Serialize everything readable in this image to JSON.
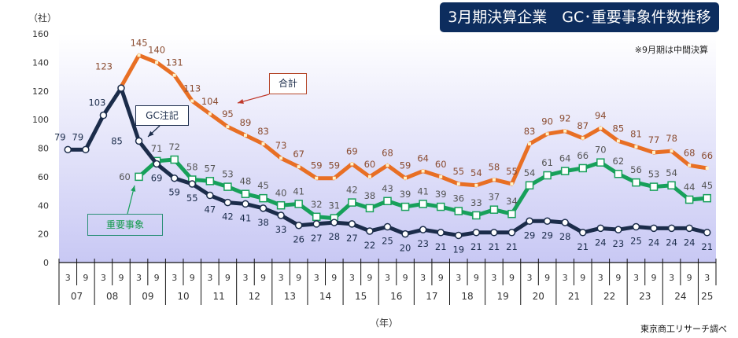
{
  "title": "3月期決算企業　GC･重要事象件数推移",
  "note": "※9月期は中間決算",
  "source": "東京商工リサーチ調べ",
  "colors": {
    "title_bg": "#0d2d5e",
    "gc": "#1b2c4a",
    "important": "#17a05a",
    "total": "#e86f24",
    "total_label": "#8a4b2f",
    "plot_bg_top": "#ffffff",
    "plot_bg_bottom": "#c8c8f4"
  },
  "callouts": {
    "gc": "GC注記",
    "total": "合計",
    "important": "重要事象"
  },
  "chart_data": {
    "type": "line",
    "title": "3月期決算企業　GC･重要事象件数推移",
    "ylabel": "（社）",
    "xlabel": "（年）",
    "ylim": [
      0,
      160
    ],
    "yticks": [
      0,
      20,
      40,
      60,
      80,
      100,
      120,
      140,
      160
    ],
    "grid": false,
    "half_labels": [
      "3",
      "9",
      "3",
      "9",
      "3",
      "9",
      "3",
      "9",
      "3",
      "9",
      "3",
      "9",
      "3",
      "9",
      "3",
      "9",
      "3",
      "9",
      "3",
      "9",
      "3",
      "9",
      "3",
      "9",
      "3",
      "9",
      "3",
      "9",
      "3",
      "9",
      "3",
      "9",
      "3",
      "9",
      "3",
      "9",
      "3"
    ],
    "years": [
      "07",
      "08",
      "09",
      "10",
      "11",
      "12",
      "13",
      "14",
      "15",
      "16",
      "17",
      "18",
      "19",
      "20",
      "21",
      "22",
      "23",
      "24",
      "25"
    ],
    "series": [
      {
        "name": "合計",
        "start_index": 3,
        "values": [
          123,
          145,
          140,
          131,
          113,
          104,
          95,
          89,
          83,
          73,
          67,
          59,
          59,
          69,
          60,
          68,
          59,
          64,
          60,
          55,
          54,
          58,
          55,
          83,
          90,
          92,
          87,
          94,
          85,
          81,
          77,
          78,
          68,
          66
        ]
      },
      {
        "name": "GC注記",
        "start_index": 0,
        "values": [
          79,
          79,
          103,
          122,
          85,
          69,
          59,
          55,
          47,
          42,
          41,
          38,
          33,
          26,
          27,
          28,
          27,
          22,
          25,
          20,
          23,
          21,
          19,
          21,
          21,
          21,
          29,
          29,
          28,
          21,
          24,
          23,
          25,
          24,
          24,
          24,
          21
        ],
        "labels": [
          "79",
          "79",
          "103",
          "",
          "85",
          "69",
          "59",
          "55",
          "47",
          "42",
          "41",
          "38",
          "33",
          "26",
          "27",
          "28",
          "27",
          "22",
          "25",
          "20",
          "23",
          "21",
          "19",
          "21",
          "21",
          "21",
          "29",
          "29",
          "28",
          "21",
          "24",
          "23",
          "25",
          "24",
          "24",
          "24",
          "21"
        ]
      },
      {
        "name": "重要事象",
        "start_index": 4,
        "values": [
          60,
          71,
          72,
          58,
          57,
          53,
          48,
          45,
          40,
          41,
          32,
          31,
          42,
          38,
          43,
          39,
          41,
          39,
          36,
          33,
          37,
          34,
          54,
          61,
          64,
          66,
          70,
          62,
          56,
          53,
          54,
          44,
          45
        ]
      }
    ]
  }
}
